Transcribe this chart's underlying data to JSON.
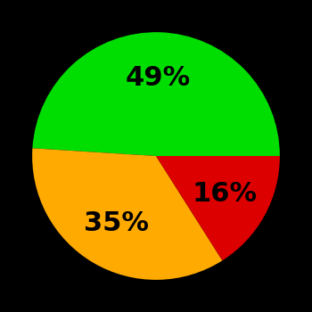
{
  "slices": [
    49,
    35,
    16
  ],
  "colors": [
    "#00dd00",
    "#ffaa00",
    "#dd0000"
  ],
  "labels": [
    "49%",
    "35%",
    "16%"
  ],
  "background_color": "#000000",
  "label_fontsize": 22,
  "label_fontweight": "bold",
  "startangle": 90,
  "figsize": [
    3.5,
    3.5
  ],
  "dpi": 100
}
